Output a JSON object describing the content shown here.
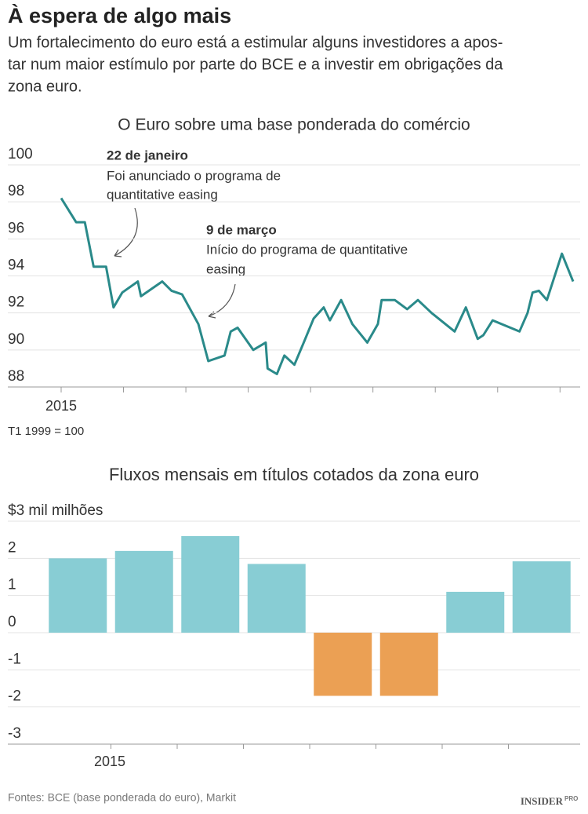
{
  "header": {
    "title": "À espera de algo mais",
    "subtitle_lines": [
      "Um fortalecimento do euro está a estimular alguns investidores a apos-",
      "tar num maior estímulo por parte do BCE e a investir em obrigações da",
      "zona euro."
    ]
  },
  "chart_data": [
    {
      "type": "line",
      "title": "O Euro sobre uma base ponderada do comércio",
      "x": [
        0,
        0.24,
        0.38,
        0.52,
        0.72,
        0.84,
        0.98,
        1.23,
        1.28,
        1.62,
        1.77,
        1.94,
        2.2,
        2.36,
        2.62,
        2.72,
        2.83,
        3.08,
        3.28,
        3.31,
        3.46,
        3.58,
        3.74,
        3.89,
        4.05,
        4.21,
        4.31,
        4.49,
        4.67,
        4.91,
        5.08,
        5.14,
        5.35,
        5.55,
        5.72,
        5.94,
        6.31,
        6.49,
        6.68,
        6.77,
        6.92,
        7.35,
        7.48,
        7.56,
        7.66,
        7.79,
        8.03,
        8.21
      ],
      "values": [
        98.2,
        96.9,
        96.9,
        94.5,
        94.5,
        92.3,
        93.1,
        93.7,
        92.9,
        93.7,
        93.2,
        93.0,
        91.4,
        89.4,
        89.7,
        91.0,
        91.2,
        90.0,
        90.4,
        89.0,
        88.7,
        89.7,
        89.2,
        90.4,
        91.7,
        92.3,
        91.6,
        92.7,
        91.4,
        90.4,
        91.4,
        92.7,
        92.7,
        92.2,
        92.7,
        92.0,
        91.0,
        92.3,
        90.6,
        90.8,
        91.6,
        91.0,
        92.0,
        93.1,
        93.2,
        92.7,
        95.2,
        93.7
      ],
      "color": "#2a8a8a",
      "xlim": [
        0,
        8.21
      ],
      "xticks": [
        {
          "value": 0,
          "label": "2015"
        },
        {
          "value": 1,
          "label": null
        },
        {
          "value": 2,
          "label": null
        },
        {
          "value": 3,
          "label": null
        },
        {
          "value": 4,
          "label": null
        },
        {
          "value": 5,
          "label": null
        },
        {
          "value": 6,
          "label": null
        },
        {
          "value": 7,
          "label": null
        },
        {
          "value": 8,
          "label": null
        }
      ],
      "ylim": [
        88,
        100
      ],
      "yticks": [
        88,
        90,
        92,
        94,
        96,
        98,
        100
      ],
      "grid": true,
      "note": "T1 1999 = 100",
      "annotations": [
        {
          "title": "22 de janeiro",
          "lines": [
            "Foi anunciado o programa de",
            "quantitative easing"
          ]
        },
        {
          "title": "9 de março",
          "lines": [
            "Início do programa de quantitative",
            "easing"
          ]
        }
      ]
    },
    {
      "type": "bar",
      "title": "Fluxos mensais em títulos cotados da zona euro",
      "categories": [
        null,
        null,
        null,
        null,
        null,
        null,
        null,
        null
      ],
      "values": [
        2.0,
        2.2,
        2.6,
        1.85,
        -1.7,
        -1.7,
        1.1,
        1.92
      ],
      "colors": [
        "#88cdd4",
        "#88cdd4",
        "#88cdd4",
        "#88cdd4",
        "#eba054",
        "#eba054",
        "#88cdd4",
        "#88cdd4"
      ],
      "x_label": "2015",
      "ylim": [
        -3,
        3
      ],
      "yticks": [
        -3,
        -2,
        -1,
        0,
        1,
        2,
        {
          "value": 3,
          "label": "$3 mil milhões"
        }
      ],
      "grid": true
    }
  ],
  "footer": {
    "source": "Fontes: BCE (base ponderada do euro), Markit",
    "logo": "INSIDER",
    "logo_suffix": "PRO"
  }
}
